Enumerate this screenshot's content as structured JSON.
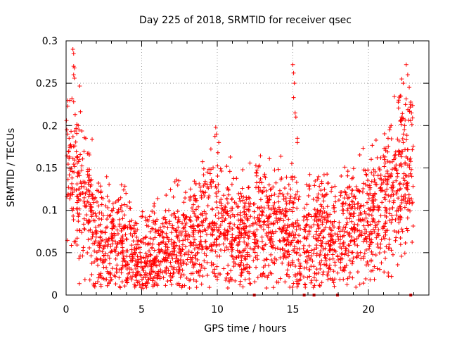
{
  "chart_data": {
    "type": "scatter",
    "title": "Day 225 of 2018, SRMTID for receiver qsec",
    "xlabel": "GPS time / hours",
    "ylabel": "SRMTID / TECUs",
    "xlim": [
      0,
      24
    ],
    "ylim": [
      0,
      0.3
    ],
    "x_ticks": [
      0,
      5,
      10,
      15,
      20
    ],
    "y_ticks": [
      0,
      0.05,
      0.1,
      0.15,
      0.2,
      0.25,
      0.3
    ],
    "x_tick_labels": [
      "0",
      "5",
      "10",
      "15",
      "20"
    ],
    "y_tick_labels": [
      "0",
      "0.05",
      "0.1",
      "0.15",
      "0.2",
      "0.25",
      "0.3"
    ],
    "grid": true,
    "marker": "plus",
    "color": "#ff0000",
    "series": [
      {
        "name": "SRMTID",
        "trend": {
          "x": [
            0,
            0.3,
            0.5,
            0.8,
            1.2,
            1.6,
            2,
            2.5,
            3,
            3.5,
            4,
            4.5,
            5,
            5.5,
            6,
            6.5,
            7,
            7.5,
            8,
            8.5,
            9,
            9.5,
            10,
            10.5,
            11,
            11.5,
            12,
            12.5,
            13,
            13.5,
            14,
            14.5,
            15,
            15.5,
            16,
            16.5,
            17,
            17.5,
            18,
            18.5,
            19,
            19.5,
            20,
            20.5,
            21,
            21.5,
            22,
            22.5,
            23
          ],
          "y": [
            0.145,
            0.14,
            0.13,
            0.12,
            0.115,
            0.1,
            0.07,
            0.06,
            0.063,
            0.065,
            0.06,
            0.045,
            0.04,
            0.042,
            0.048,
            0.052,
            0.055,
            0.055,
            0.06,
            0.07,
            0.08,
            0.085,
            0.09,
            0.085,
            0.075,
            0.065,
            0.07,
            0.085,
            0.09,
            0.085,
            0.08,
            0.075,
            0.08,
            0.06,
            0.065,
            0.075,
            0.07,
            0.065,
            0.065,
            0.07,
            0.08,
            0.085,
            0.09,
            0.095,
            0.1,
            0.115,
            0.13,
            0.15,
            0.155
          ]
        },
        "highlights": [
          {
            "x": 0.05,
            "y": 0.195
          },
          {
            "x": 0.1,
            "y": 0.19
          },
          {
            "x": 0.2,
            "y": 0.185
          },
          {
            "x": 0.45,
            "y": 0.29
          },
          {
            "x": 0.5,
            "y": 0.285
          },
          {
            "x": 0.5,
            "y": 0.27
          },
          {
            "x": 0.55,
            "y": 0.268
          },
          {
            "x": 0.5,
            "y": 0.26
          },
          {
            "x": 0.55,
            "y": 0.256
          },
          {
            "x": 0.5,
            "y": 0.228
          },
          {
            "x": 0.6,
            "y": 0.213
          },
          {
            "x": 0.8,
            "y": 0.2
          },
          {
            "x": 0.85,
            "y": 0.195
          },
          {
            "x": 1.3,
            "y": 0.185
          },
          {
            "x": 9.9,
            "y": 0.198
          },
          {
            "x": 9.95,
            "y": 0.19
          },
          {
            "x": 10.1,
            "y": 0.18
          },
          {
            "x": 15.0,
            "y": 0.272
          },
          {
            "x": 15.05,
            "y": 0.262
          },
          {
            "x": 15.1,
            "y": 0.25
          },
          {
            "x": 15.05,
            "y": 0.233
          },
          {
            "x": 15.15,
            "y": 0.215
          },
          {
            "x": 15.2,
            "y": 0.21
          },
          {
            "x": 15.3,
            "y": 0.185
          },
          {
            "x": 15.3,
            "y": 0.18
          },
          {
            "x": 21.3,
            "y": 0.185
          },
          {
            "x": 21.4,
            "y": 0.195
          },
          {
            "x": 21.5,
            "y": 0.2
          },
          {
            "x": 22.0,
            "y": 0.23
          },
          {
            "x": 22.1,
            "y": 0.235
          },
          {
            "x": 22.2,
            "y": 0.255
          },
          {
            "x": 22.3,
            "y": 0.25
          },
          {
            "x": 22.5,
            "y": 0.272
          },
          {
            "x": 22.6,
            "y": 0.26
          },
          {
            "x": 22.7,
            "y": 0.245
          },
          {
            "x": 22.8,
            "y": 0.225
          },
          {
            "x": 22.85,
            "y": 0.215
          },
          {
            "x": 22.2,
            "y": 0.21
          },
          {
            "x": 22.4,
            "y": 0.2
          },
          {
            "x": 10.6,
            "y": 0.02
          },
          {
            "x": 10.7,
            "y": 0.025
          },
          {
            "x": 2.3,
            "y": 0.012
          },
          {
            "x": 4.1,
            "y": 0.025
          },
          {
            "x": 7.3,
            "y": 0.03
          },
          {
            "x": 11.6,
            "y": 0.03
          },
          {
            "x": 13.4,
            "y": 0.035
          },
          {
            "x": 16.3,
            "y": 0.04
          },
          {
            "x": 17.2,
            "y": 0.035
          }
        ],
        "baseline_markers_x": [
          12.45,
          15.75,
          16.4,
          17.95,
          22.8
        ]
      }
    ]
  }
}
